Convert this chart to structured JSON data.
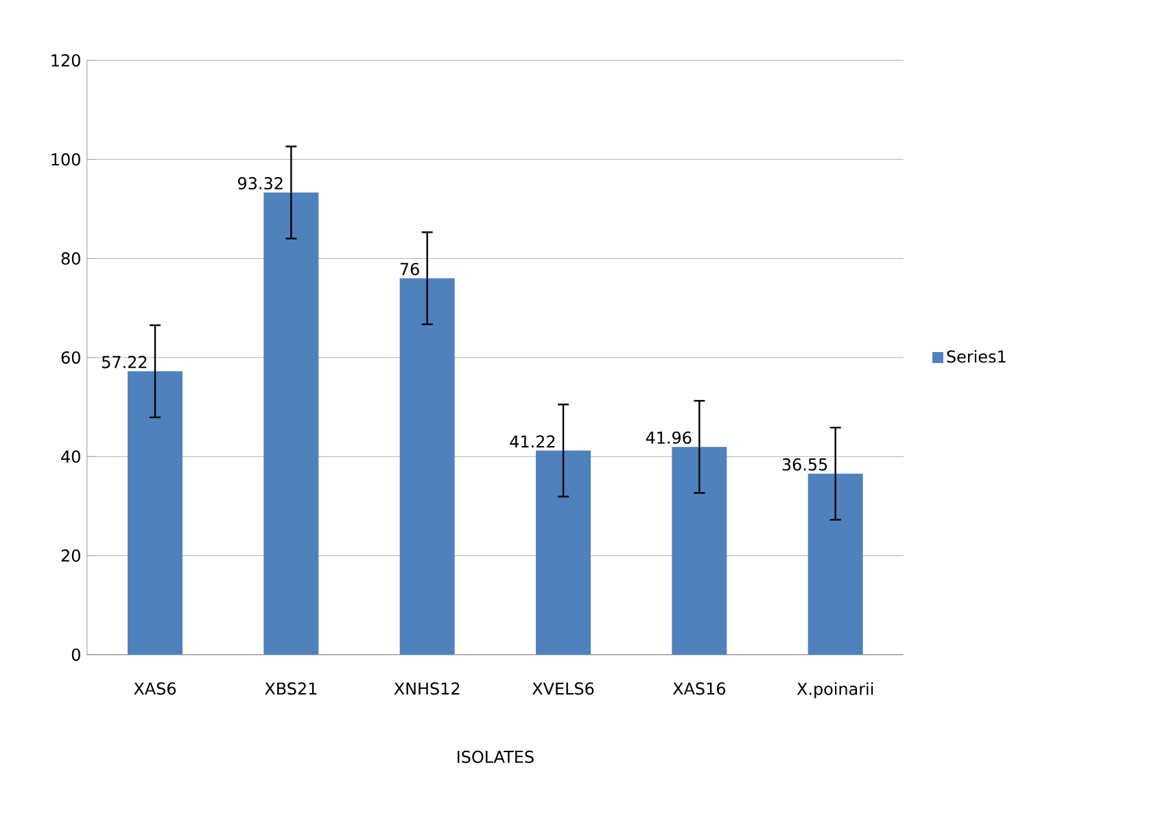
{
  "chart_data": {
    "type": "bar",
    "xlabel": "ISOLATES",
    "categories": [
      "XAS6",
      "XBS21",
      "XNHS12",
      "XVELS6",
      "XAS16",
      "X.poinarii"
    ],
    "series": [
      {
        "name": "Series1",
        "color": "#4f81bd",
        "values": [
          57.22,
          93.32,
          76,
          41.22,
          41.96,
          36.55
        ],
        "errors": [
          9.3,
          9.3,
          9.3,
          9.3,
          9.3,
          9.3
        ],
        "value_labels": [
          "57.22",
          "93.32",
          "76",
          "41.22",
          "41.96",
          "36.55"
        ]
      }
    ],
    "ylim": [
      0,
      120
    ],
    "yticks": [
      0,
      20,
      40,
      60,
      80,
      100,
      120
    ],
    "grid": "y",
    "legend": "right"
  }
}
